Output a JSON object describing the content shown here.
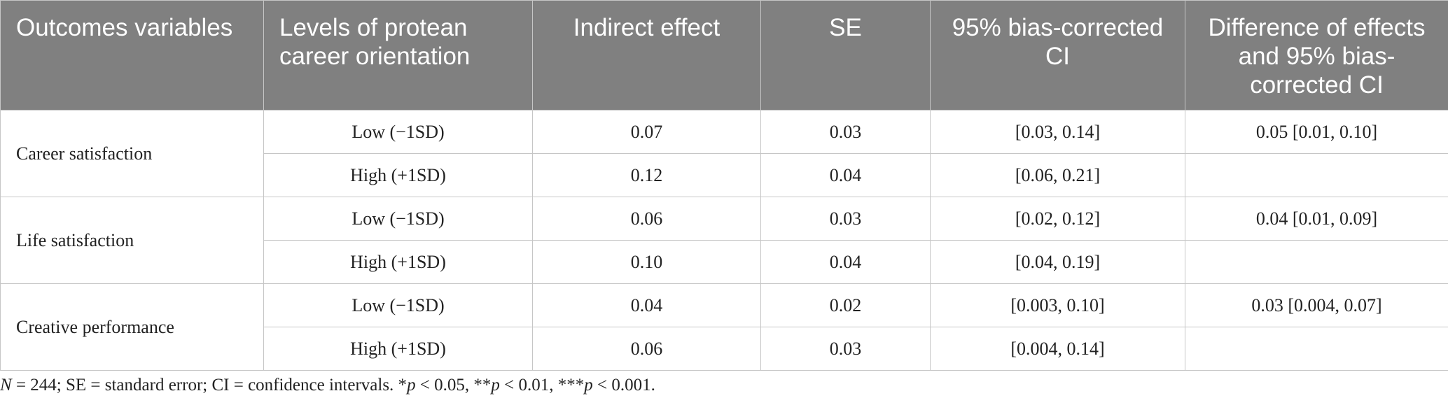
{
  "table": {
    "headers": [
      "Outcomes variables",
      "Levels of protean career orientation",
      "Indirect effect",
      "SE",
      "95% bias-corrected CI",
      "Difference of effects and 95% bias-corrected CI"
    ],
    "groups": [
      {
        "outcome": "Career satisfaction",
        "rows": [
          {
            "level": "Low (−1SD)",
            "indirect_effect": "0.07",
            "se": "0.03",
            "ci": "[0.03, 0.14]",
            "difference": "0.05 [0.01, 0.10]"
          },
          {
            "level": "High (+1SD)",
            "indirect_effect": "0.12",
            "se": "0.04",
            "ci": "[0.06, 0.21]",
            "difference": ""
          }
        ]
      },
      {
        "outcome": "Life satisfaction",
        "rows": [
          {
            "level": "Low (−1SD)",
            "indirect_effect": "0.06",
            "se": "0.03",
            "ci": "[0.02, 0.12]",
            "difference": "0.04 [0.01, 0.09]"
          },
          {
            "level": "High (+1SD)",
            "indirect_effect": "0.10",
            "se": "0.04",
            "ci": "[0.04, 0.19]",
            "difference": ""
          }
        ]
      },
      {
        "outcome": "Creative performance",
        "rows": [
          {
            "level": "Low (−1SD)",
            "indirect_effect": "0.04",
            "se": "0.02",
            "ci": "[0.003, 0.10]",
            "difference": "0.03 [0.004, 0.07]"
          },
          {
            "level": "High (+1SD)",
            "indirect_effect": "0.06",
            "se": "0.03",
            "ci": "[0.004, 0.14]",
            "difference": ""
          }
        ]
      }
    ]
  },
  "footnote": {
    "n_label": "N",
    "n_text": " = 244; SE = standard error; CI = confidence intervals. *",
    "p1": "p",
    "p1_text": " < 0.05, **",
    "p2": "p",
    "p2_text": " < 0.01, ***",
    "p3": "p",
    "p3_text": " < 0.001."
  },
  "colors": {
    "header_bg": "#808080",
    "header_text": "#ffffff",
    "border": "#c6c6c6"
  }
}
